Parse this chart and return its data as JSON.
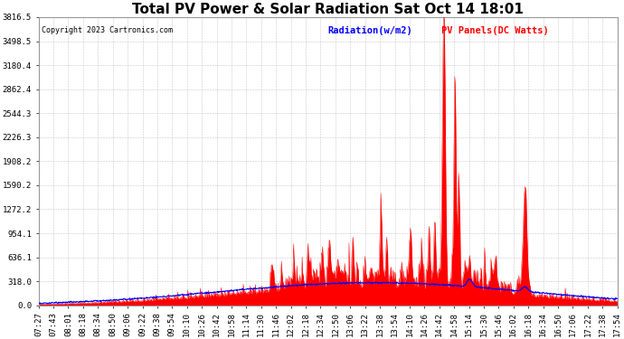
{
  "title": "Total PV Power & Solar Radiation Sat Oct 14 18:01",
  "copyright": "Copyright 2023 Cartronics.com",
  "legend_radiation": "Radiation(w/m2)",
  "legend_pv": "PV Panels(DC Watts)",
  "ylabel_values": [
    3816.5,
    3498.5,
    3180.4,
    2862.4,
    2544.3,
    2226.3,
    1908.2,
    1590.2,
    1272.2,
    954.1,
    636.1,
    318.0,
    0.0
  ],
  "ymax": 3816.5,
  "ymin": 0.0,
  "background_color": "#ffffff",
  "plot_bg_color": "#ffffff",
  "grid_color": "#bbbbbb",
  "radiation_color": "#0000ff",
  "pv_color": "#ff0000",
  "title_fontsize": 11,
  "tick_fontsize": 6.5,
  "x_tick_labels": [
    "07:27",
    "07:43",
    "08:01",
    "08:18",
    "08:34",
    "08:50",
    "09:06",
    "09:22",
    "09:38",
    "09:54",
    "10:10",
    "10:26",
    "10:42",
    "10:58",
    "11:14",
    "11:30",
    "11:46",
    "12:02",
    "12:18",
    "12:34",
    "12:50",
    "13:06",
    "13:22",
    "13:38",
    "13:54",
    "14:10",
    "14:26",
    "14:42",
    "14:58",
    "15:14",
    "15:30",
    "15:46",
    "16:02",
    "16:18",
    "16:34",
    "16:50",
    "17:06",
    "17:22",
    "17:38",
    "17:54"
  ]
}
